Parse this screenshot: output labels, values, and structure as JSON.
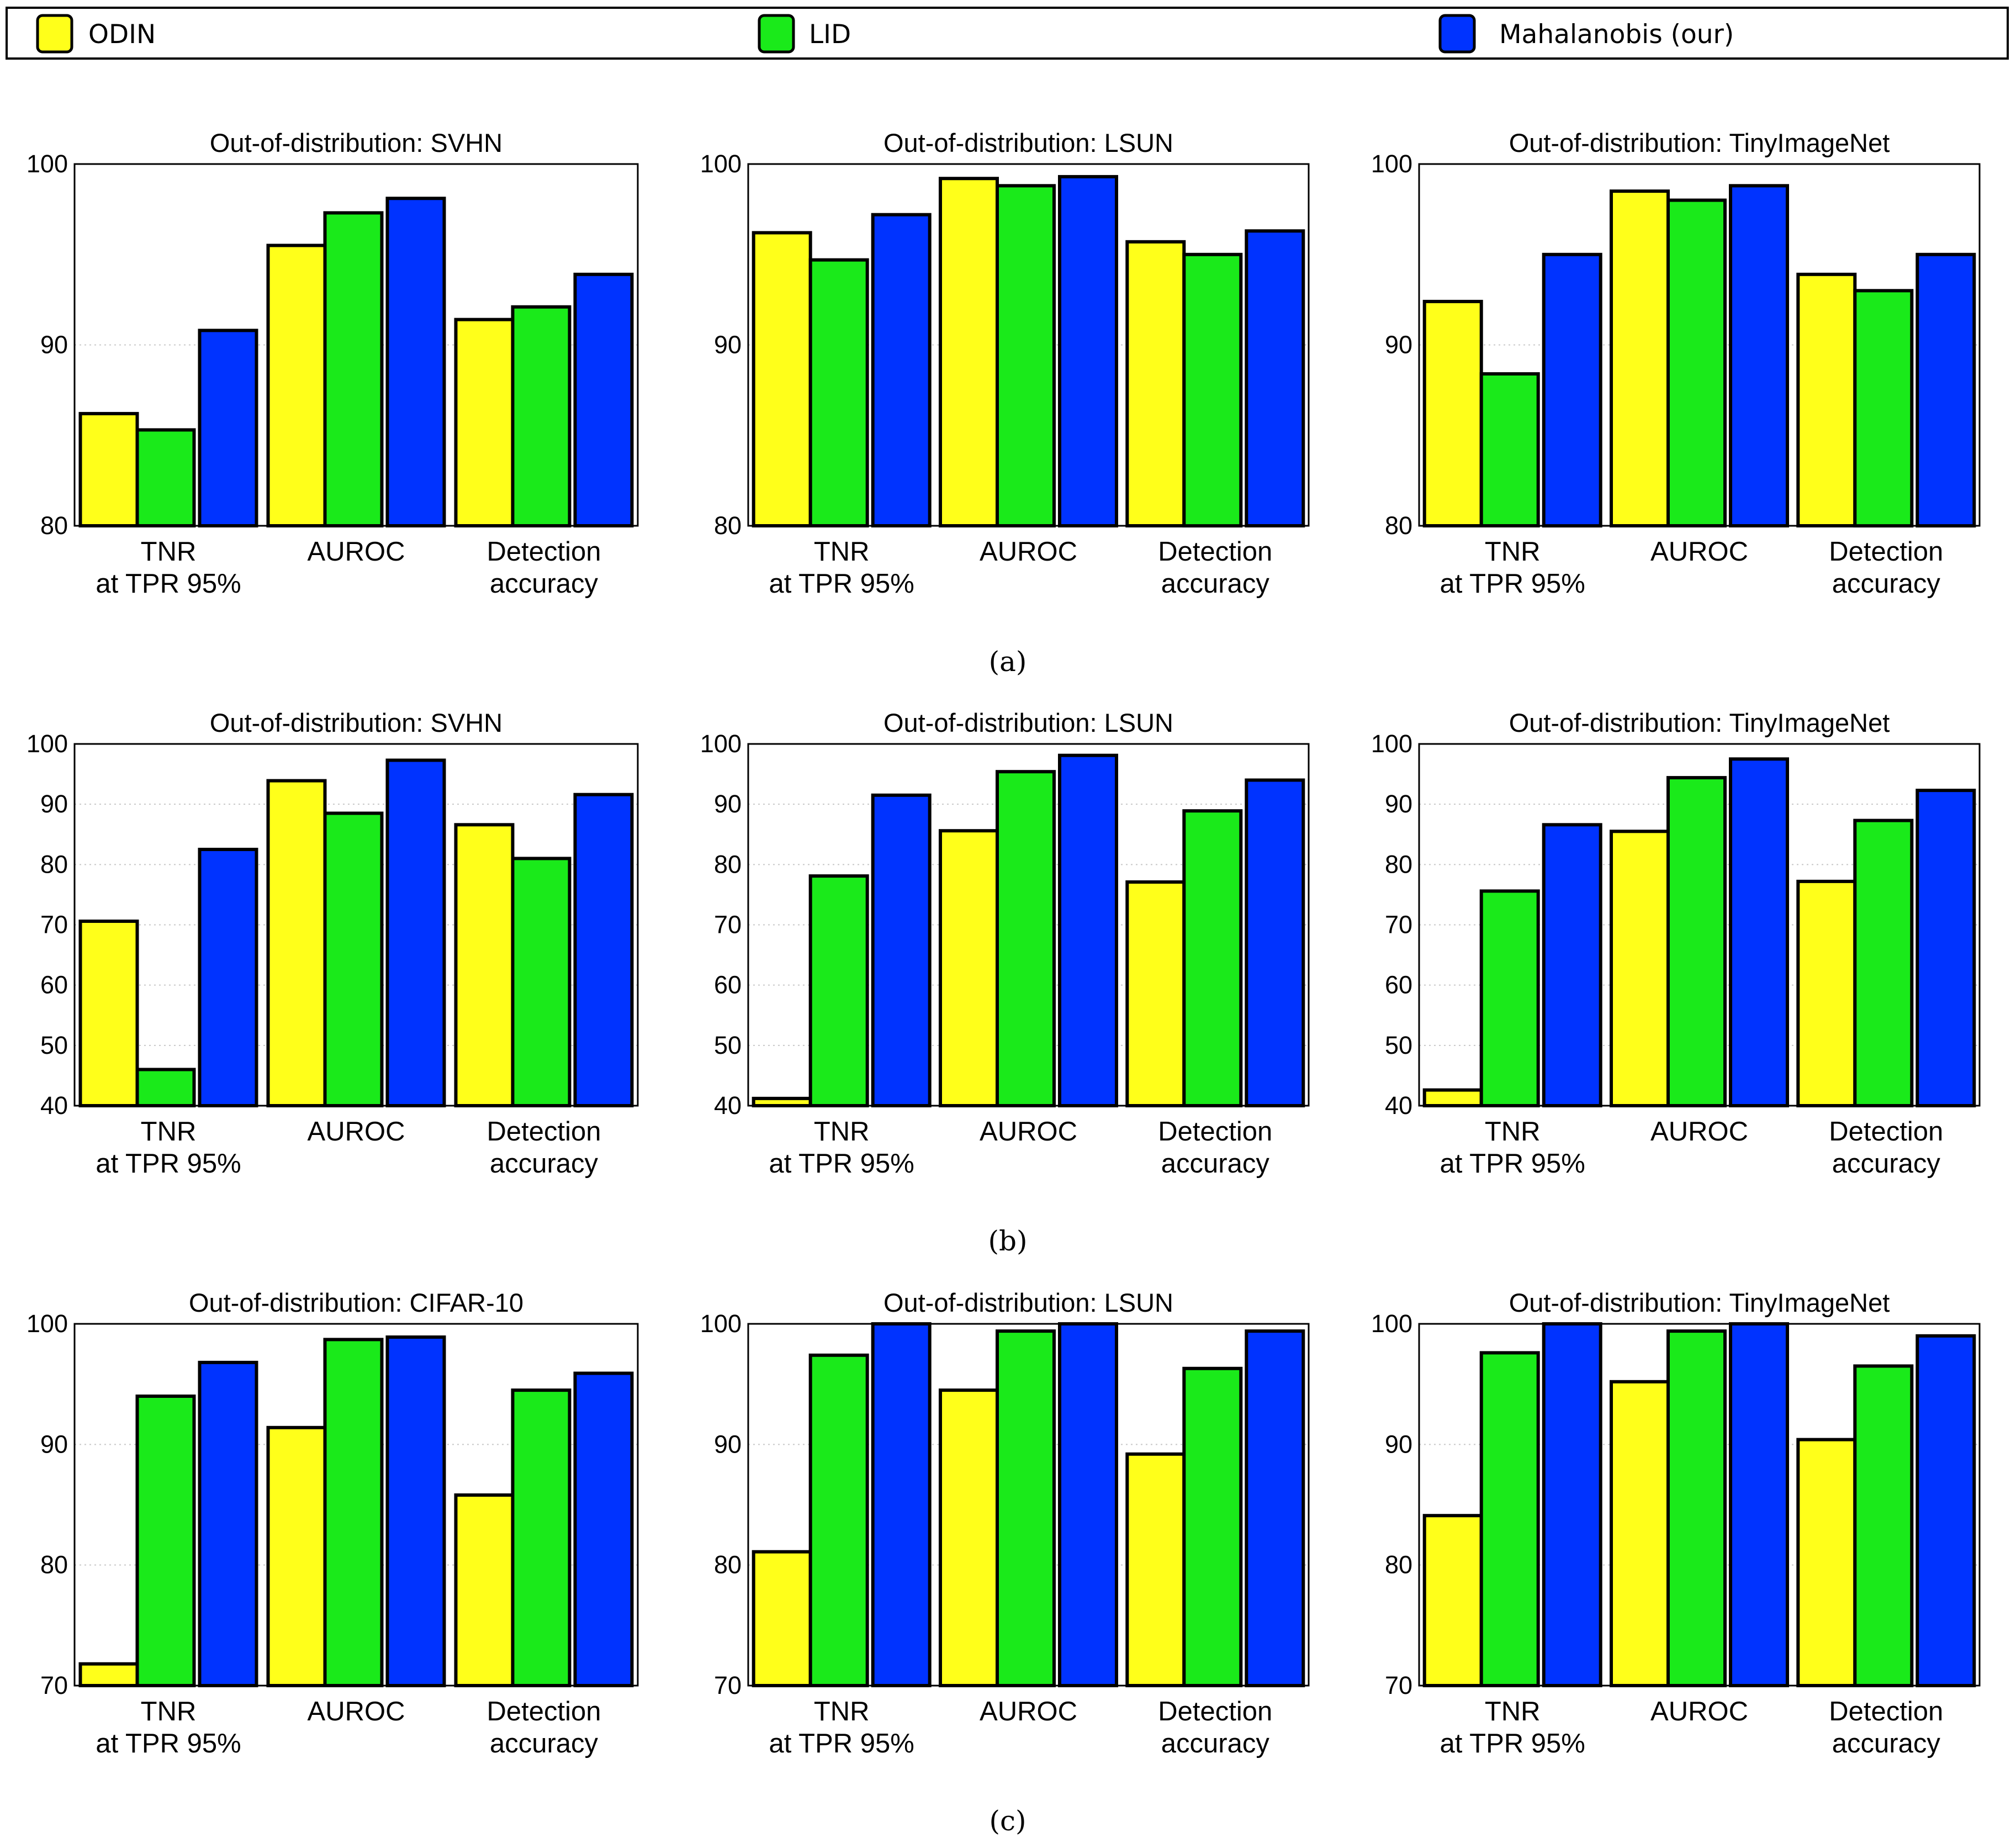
{
  "colors": {
    "ODIN": "#ffff1a",
    "LID": "#1aea1a",
    "Mahalanobis": "#0033ff",
    "frame": "#000000",
    "grid": "#c8c8c8"
  },
  "legend": {
    "items": [
      {
        "label": "ODIN",
        "color": "#ffff1a"
      },
      {
        "label": "LID",
        "color": "#1aea1a"
      },
      {
        "label": "Mahalanobis (our)",
        "color": "#0033ff"
      }
    ]
  },
  "captions": [
    "(a)",
    "(b)",
    "(c)"
  ],
  "chart_data": [
    {
      "type": "bar",
      "title": "Out-of-distribution: SVHN",
      "categories": [
        "TNR\nat TPR 95%",
        "AUROC",
        "Detection\naccuracy"
      ],
      "ylim": [
        80,
        100
      ],
      "yticks": [
        80,
        90,
        100
      ],
      "series": [
        {
          "name": "ODIN",
          "values": [
            86.2,
            95.5,
            91.4
          ]
        },
        {
          "name": "LID",
          "values": [
            85.3,
            97.3,
            92.1
          ]
        },
        {
          "name": "Mahalanobis (our)",
          "values": [
            90.8,
            98.1,
            93.9
          ]
        }
      ]
    },
    {
      "type": "bar",
      "title": "Out-of-distribution: LSUN",
      "categories": [
        "TNR\nat TPR 95%",
        "AUROC",
        "Detection\naccuracy"
      ],
      "ylim": [
        80,
        100
      ],
      "yticks": [
        80,
        90,
        100
      ],
      "series": [
        {
          "name": "ODIN",
          "values": [
            96.2,
            99.2,
            95.7
          ]
        },
        {
          "name": "LID",
          "values": [
            94.7,
            98.8,
            95.0
          ]
        },
        {
          "name": "Mahalanobis (our)",
          "values": [
            97.2,
            99.3,
            96.3
          ]
        }
      ]
    },
    {
      "type": "bar",
      "title": "Out-of-distribution: TinyImageNet",
      "categories": [
        "TNR\nat TPR 95%",
        "AUROC",
        "Detection\naccuracy"
      ],
      "ylim": [
        80,
        100
      ],
      "yticks": [
        80,
        90,
        100
      ],
      "series": [
        {
          "name": "ODIN",
          "values": [
            92.4,
            98.5,
            93.9
          ]
        },
        {
          "name": "LID",
          "values": [
            88.4,
            98.0,
            93.0
          ]
        },
        {
          "name": "Mahalanobis (our)",
          "values": [
            95.0,
            98.8,
            95.0
          ]
        }
      ]
    },
    {
      "type": "bar",
      "title": "Out-of-distribution: SVHN",
      "categories": [
        "TNR\nat TPR 95%",
        "AUROC",
        "Detection\naccuracy"
      ],
      "ylim": [
        40,
        100
      ],
      "yticks": [
        40,
        50,
        60,
        70,
        80,
        90,
        100
      ],
      "series": [
        {
          "name": "ODIN",
          "values": [
            70.6,
            93.9,
            86.6
          ]
        },
        {
          "name": "LID",
          "values": [
            46.0,
            88.5,
            81.0
          ]
        },
        {
          "name": "Mahalanobis (our)",
          "values": [
            82.5,
            97.3,
            91.6
          ]
        }
      ]
    },
    {
      "type": "bar",
      "title": "Out-of-distribution: LSUN",
      "categories": [
        "TNR\nat TPR 95%",
        "AUROC",
        "Detection\naccuracy"
      ],
      "ylim": [
        40,
        100
      ],
      "yticks": [
        40,
        50,
        60,
        70,
        80,
        90,
        100
      ],
      "series": [
        {
          "name": "ODIN",
          "values": [
            41.2,
            85.6,
            77.1
          ]
        },
        {
          "name": "LID",
          "values": [
            78.1,
            95.4,
            88.9
          ]
        },
        {
          "name": "Mahalanobis (our)",
          "values": [
            91.5,
            98.1,
            94.0
          ]
        }
      ]
    },
    {
      "type": "bar",
      "title": "Out-of-distribution: TinyImageNet",
      "categories": [
        "TNR\nat TPR 95%",
        "AUROC",
        "Detection\naccuracy"
      ],
      "ylim": [
        40,
        100
      ],
      "yticks": [
        40,
        50,
        60,
        70,
        80,
        90,
        100
      ],
      "series": [
        {
          "name": "ODIN",
          "values": [
            42.6,
            85.5,
            77.2
          ]
        },
        {
          "name": "LID",
          "values": [
            75.6,
            94.4,
            87.3
          ]
        },
        {
          "name": "Mahalanobis (our)",
          "values": [
            86.6,
            97.5,
            92.3
          ]
        }
      ]
    },
    {
      "type": "bar",
      "title": "Out-of-distribution: CIFAR-10",
      "categories": [
        "TNR\nat TPR 95%",
        "AUROC",
        "Detection\naccuracy"
      ],
      "ylim": [
        70,
        100
      ],
      "yticks": [
        70,
        80,
        90,
        100
      ],
      "series": [
        {
          "name": "ODIN",
          "values": [
            71.8,
            91.4,
            85.8
          ]
        },
        {
          "name": "LID",
          "values": [
            94.0,
            98.7,
            94.5
          ]
        },
        {
          "name": "Mahalanobis (our)",
          "values": [
            96.8,
            98.9,
            95.9
          ]
        }
      ]
    },
    {
      "type": "bar",
      "title": "Out-of-distribution: LSUN",
      "categories": [
        "TNR\nat TPR 95%",
        "AUROC",
        "Detection\naccuracy"
      ],
      "ylim": [
        70,
        100
      ],
      "yticks": [
        70,
        80,
        90,
        100
      ],
      "series": [
        {
          "name": "ODIN",
          "values": [
            81.1,
            94.5,
            89.2
          ]
        },
        {
          "name": "LID",
          "values": [
            97.4,
            99.4,
            96.3
          ]
        },
        {
          "name": "Mahalanobis (our)",
          "values": [
            100.0,
            100.0,
            99.4
          ]
        }
      ]
    },
    {
      "type": "bar",
      "title": "Out-of-distribution: TinyImageNet",
      "categories": [
        "TNR\nat TPR 95%",
        "AUROC",
        "Detection\naccuracy"
      ],
      "ylim": [
        70,
        100
      ],
      "yticks": [
        70,
        80,
        90,
        100
      ],
      "series": [
        {
          "name": "ODIN",
          "values": [
            84.1,
            95.2,
            90.4
          ]
        },
        {
          "name": "LID",
          "values": [
            97.6,
            99.4,
            96.5
          ]
        },
        {
          "name": "Mahalanobis (our)",
          "values": [
            100.0,
            100.0,
            99.0
          ]
        }
      ]
    }
  ]
}
